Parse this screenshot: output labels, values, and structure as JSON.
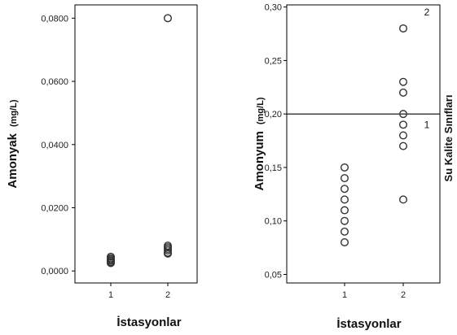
{
  "chart_data": [
    {
      "type": "scatter",
      "xlabel": "İstasyonlar",
      "ylabel": "Amonyak",
      "yunit": "(mg/L)",
      "categories": [
        "1",
        "2"
      ],
      "y_ticks": [
        "0,0000",
        "0,0200",
        "0,0400",
        "0,0600",
        "0,0800"
      ],
      "ylim": [
        -0.0038,
        0.0842
      ],
      "grid": false,
      "points": [
        {
          "x": "1",
          "y": 0.0045
        },
        {
          "x": "1",
          "y": 0.004
        },
        {
          "x": "1",
          "y": 0.0036
        },
        {
          "x": "1",
          "y": 0.0032
        },
        {
          "x": "1",
          "y": 0.0028
        },
        {
          "x": "1",
          "y": 0.0025
        },
        {
          "x": "2",
          "y": 0.08
        },
        {
          "x": "2",
          "y": 0.008
        },
        {
          "x": "2",
          "y": 0.0075
        },
        {
          "x": "2",
          "y": 0.007
        },
        {
          "x": "2",
          "y": 0.0065
        },
        {
          "x": "2",
          "y": 0.0058
        },
        {
          "x": "2",
          "y": 0.0055
        }
      ]
    },
    {
      "type": "scatter",
      "xlabel": "İstasyonlar",
      "ylabel": "Amonyum",
      "yunit": "(mg/L)",
      "secondary_ylabel": "Su Kalite Sınıfları",
      "categories": [
        "1",
        "2"
      ],
      "y_ticks": [
        "0,05",
        "0,10",
        "0,15",
        "0,20",
        "0,25",
        "0,30"
      ],
      "ylim": [
        0.042,
        0.302
      ],
      "grid": false,
      "reference_line": {
        "y": 0.2
      },
      "zone_labels": [
        {
          "text": "2",
          "y": 0.295
        },
        {
          "text": "1",
          "y": 0.19
        }
      ],
      "points": [
        {
          "x": "1",
          "y": 0.15
        },
        {
          "x": "1",
          "y": 0.14
        },
        {
          "x": "1",
          "y": 0.13
        },
        {
          "x": "1",
          "y": 0.12
        },
        {
          "x": "1",
          "y": 0.11
        },
        {
          "x": "1",
          "y": 0.1
        },
        {
          "x": "1",
          "y": 0.09
        },
        {
          "x": "1",
          "y": 0.08
        },
        {
          "x": "2",
          "y": 0.28
        },
        {
          "x": "2",
          "y": 0.23
        },
        {
          "x": "2",
          "y": 0.22
        },
        {
          "x": "2",
          "y": 0.2
        },
        {
          "x": "2",
          "y": 0.19
        },
        {
          "x": "2",
          "y": 0.18
        },
        {
          "x": "2",
          "y": 0.17
        },
        {
          "x": "2",
          "y": 0.12
        }
      ]
    }
  ]
}
